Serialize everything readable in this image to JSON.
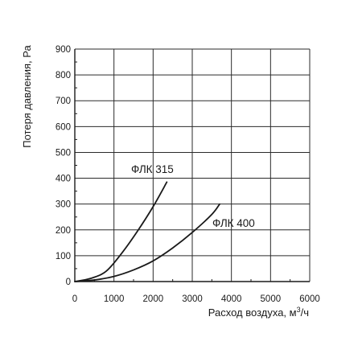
{
  "chart_data": {
    "type": "line",
    "title": "",
    "xlabel": "Расход воздуха, м",
    "xlabel_sup": "3",
    "xlabel_tail": "/ч",
    "ylabel": "Потеря давления, Ра",
    "xlim": [
      0,
      6000
    ],
    "ylim": [
      0,
      900
    ],
    "x_ticks": [
      0,
      1000,
      2000,
      3000,
      4000,
      5000,
      6000
    ],
    "y_ticks": [
      0,
      100,
      200,
      300,
      400,
      500,
      600,
      700,
      800,
      900
    ],
    "x_tick_labels": [
      "0",
      "1000",
      "2000",
      "3000",
      "4000",
      "5000",
      "6000"
    ],
    "y_tick_labels": [
      "0",
      "100",
      "200",
      "300",
      "400",
      "500",
      "600",
      "700",
      "800",
      "900"
    ],
    "grid": true,
    "series": [
      {
        "name": "ФЛК 315",
        "x": [
          0,
          400,
          800,
          1200,
          1600,
          2000,
          2350
        ],
        "y": [
          0,
          12,
          40,
          110,
          195,
          290,
          385
        ]
      },
      {
        "name": "ФЛК 400",
        "x": [
          0,
          500,
          1000,
          1500,
          2000,
          2500,
          3000,
          3500,
          3700
        ],
        "y": [
          0,
          6,
          20,
          45,
          80,
          130,
          190,
          260,
          300
        ]
      }
    ]
  }
}
